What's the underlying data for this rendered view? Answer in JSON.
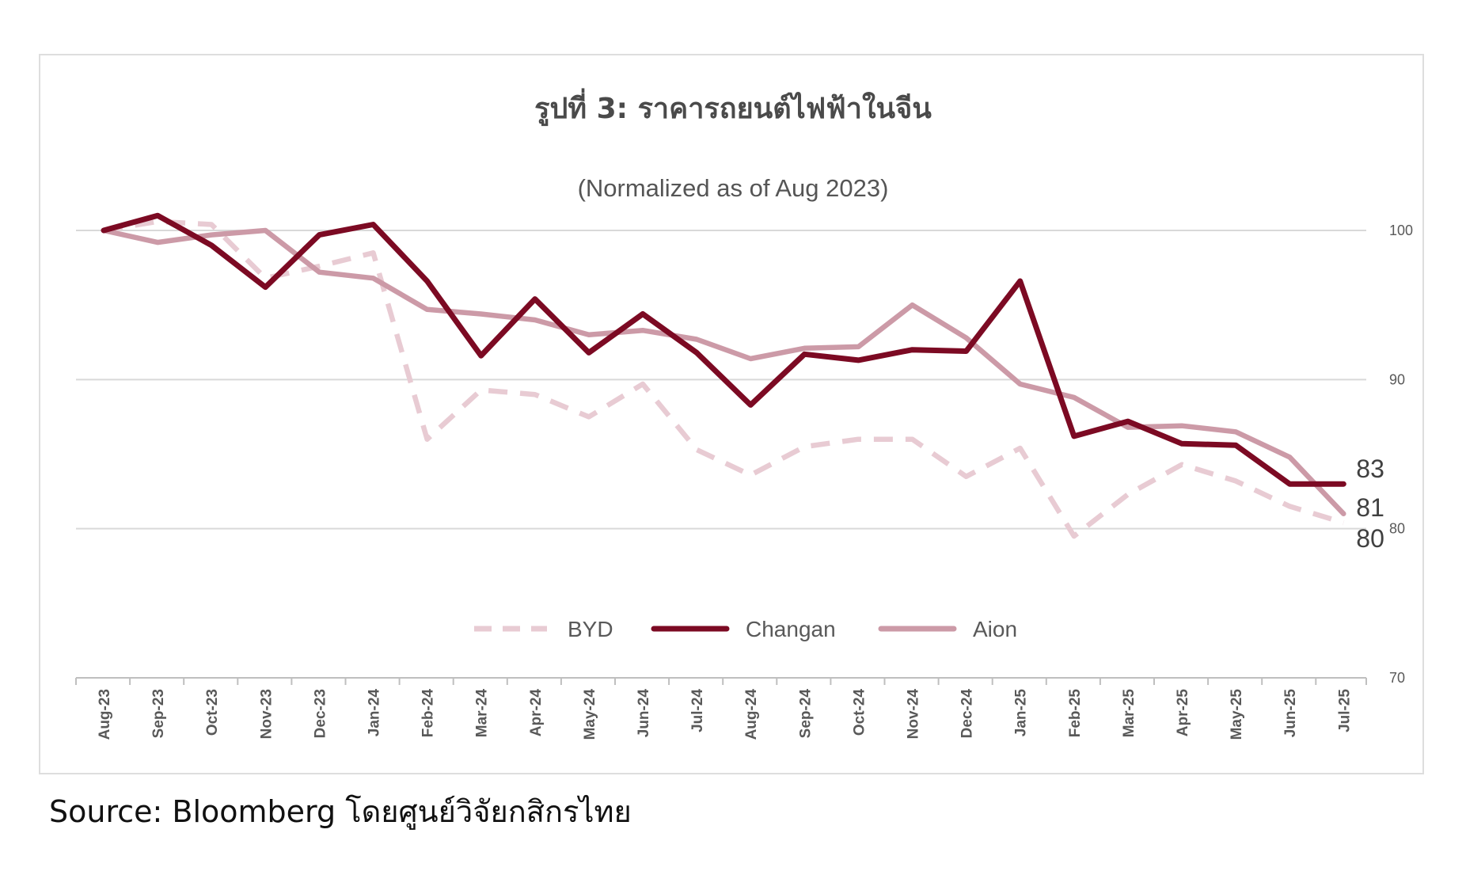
{
  "chart_data": {
    "type": "line",
    "title": "รูปที่ 3: ราคารถยนต์ไฟฟ้าในจีน",
    "subtitle": "(Normalized as of Aug 2023)",
    "x": [
      "Aug-23",
      "Sep-23",
      "Oct-23",
      "Nov-23",
      "Dec-23",
      "Jan-24",
      "Feb-24",
      "Mar-24",
      "Apr-24",
      "May-24",
      "Jun-24",
      "Jul-24",
      "Aug-24",
      "Sep-24",
      "Oct-24",
      "Nov-24",
      "Dec-24",
      "Jan-25",
      "Feb-25",
      "Mar-25",
      "Apr-25",
      "May-25",
      "Jun-25",
      "Jul-25"
    ],
    "ylim": [
      70,
      100
    ],
    "yticks": [
      70,
      80,
      90,
      100
    ],
    "y_axis_side": "right",
    "grid": true,
    "legend_position": "bottom",
    "series": [
      {
        "name": "BYD",
        "style": "dashed",
        "color": "#e8cbd3",
        "end_label": "80",
        "values": [
          100,
          100.6,
          100.4,
          96.8,
          97.6,
          98.5,
          86.0,
          89.3,
          89.0,
          87.5,
          89.7,
          85.3,
          83.6,
          85.5,
          86.0,
          86.0,
          83.5,
          85.4,
          79.5,
          82.3,
          84.3,
          83.2,
          81.5,
          80.4
        ]
      },
      {
        "name": "Changan",
        "style": "solid",
        "color": "#7c0a23",
        "end_label": "83",
        "values": [
          100,
          101.0,
          99.0,
          96.2,
          99.7,
          100.4,
          96.6,
          91.6,
          95.4,
          91.8,
          94.4,
          91.8,
          88.3,
          91.7,
          91.3,
          92.0,
          91.9,
          96.6,
          86.2,
          87.2,
          85.7,
          85.6,
          83.0,
          83.0
        ]
      },
      {
        "name": "Aion",
        "style": "solid",
        "color": "#cc9aa7",
        "end_label": "81",
        "values": [
          100,
          99.2,
          99.7,
          100.0,
          97.2,
          96.8,
          94.7,
          94.4,
          94.0,
          93.0,
          93.3,
          92.7,
          91.4,
          92.1,
          92.2,
          95.0,
          92.8,
          89.7,
          88.8,
          86.8,
          86.9,
          86.5,
          84.8,
          81.0
        ]
      }
    ]
  },
  "source_text": "Source: Bloomberg โดยศูนย์วิจัยกสิกรไทย"
}
